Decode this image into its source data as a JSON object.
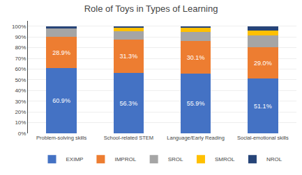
{
  "chart_data": {
    "type": "bar",
    "stacked": true,
    "title": "Role of Toys in Types of Learning",
    "categories": [
      "Problem-solving skills",
      "School-related STEM",
      "Language/Early Reading",
      "Social-emotional skills"
    ],
    "series": [
      {
        "name": "EXIMP",
        "color": "#4472c4",
        "values": [
          60.9,
          56.3,
          55.9,
          51.1
        ],
        "data_labels": true,
        "value_labels": [
          "60.9%",
          "56.3%",
          "55.9%",
          "51.1%"
        ]
      },
      {
        "name": "IMPROL",
        "color": "#ed7d31",
        "values": [
          28.9,
          31.3,
          30.1,
          29.0
        ],
        "data_labels": true,
        "value_labels": [
          "28.9%",
          "31.3%",
          "30.1%",
          "29.0%"
        ]
      },
      {
        "name": "SROL",
        "color": "#a5a5a5",
        "values": [
          8.2,
          8.0,
          8.5,
          11.5
        ]
      },
      {
        "name": "SMROL",
        "color": "#ffc000",
        "values": [
          0.0,
          2.9,
          4.5,
          4.4
        ]
      },
      {
        "name": "NROL",
        "color": "#264478",
        "values": [
          2.0,
          1.5,
          1.0,
          4.0
        ]
      }
    ],
    "ylim": [
      0,
      105
    ],
    "yticks": [
      {
        "value": 0,
        "label": "0%"
      },
      {
        "value": 10,
        "label": "10%"
      },
      {
        "value": 20,
        "label": "20%"
      },
      {
        "value": 30,
        "label": "30%"
      },
      {
        "value": 40,
        "label": "40%"
      },
      {
        "value": 50,
        "label": "50%"
      },
      {
        "value": 60,
        "label": "60%"
      },
      {
        "value": 70,
        "label": "70%"
      },
      {
        "value": 80,
        "label": "80%"
      },
      {
        "value": 90,
        "label": "90%"
      },
      {
        "value": 100,
        "label": "100%"
      }
    ],
    "grid": true,
    "legend": "bottom"
  }
}
